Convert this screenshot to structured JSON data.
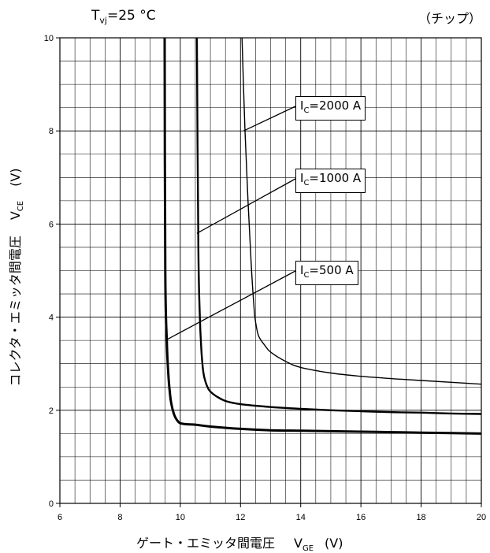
{
  "header": {
    "condition_main": "T",
    "condition_sub": "vj",
    "condition_value": "=25 °C",
    "scope": "（チップ）"
  },
  "axes": {
    "x_label_main": "ゲート・エミッタ間電圧",
    "x_label_sym": "V",
    "x_label_sub": "GE",
    "x_label_unit": "(V)",
    "y_label_main": "コレクタ・エミッタ間電圧",
    "y_label_sym": "V",
    "y_label_sub": "CE",
    "y_label_unit": "(V)"
  },
  "chart_data": {
    "type": "line",
    "xlim": [
      6,
      20
    ],
    "ylim": [
      0,
      10
    ],
    "x_ticks": [
      "6",
      "8",
      "10",
      "12",
      "14",
      "16",
      "18",
      "20"
    ],
    "y_ticks": [
      "0",
      "2",
      "4",
      "6",
      "8",
      "10"
    ],
    "grid": true,
    "minor_grid_x": 0.5,
    "minor_grid_y": 0.5,
    "series": [
      {
        "label_sym": "I",
        "label_sub": "C",
        "label_val": "=500 A",
        "pointer": [
          9.5,
          3.5
        ],
        "x": [
          9.48,
          9.5,
          9.55,
          9.6,
          9.65,
          9.7,
          9.8,
          9.9,
          10.0,
          10.2,
          10.5,
          11.0,
          12.0,
          13.0,
          14.0,
          15.0,
          16.0,
          17.0,
          18.0,
          19.0,
          20.0
        ],
        "y": [
          10.0,
          5.0,
          3.5,
          2.8,
          2.4,
          2.15,
          1.9,
          1.78,
          1.72,
          1.7,
          1.69,
          1.65,
          1.6,
          1.57,
          1.56,
          1.55,
          1.54,
          1.53,
          1.52,
          1.51,
          1.5
        ]
      },
      {
        "label_sym": "I",
        "label_sub": "C",
        "label_val": "=1000 A",
        "pointer": [
          10.55,
          5.8
        ],
        "x": [
          10.55,
          10.6,
          10.65,
          10.7,
          10.75,
          10.8,
          10.9,
          11.0,
          11.2,
          11.5,
          12.0,
          13.0,
          14.0,
          15.0,
          16.0,
          17.0,
          18.0,
          19.0,
          20.0
        ],
        "y": [
          10.0,
          5.5,
          4.0,
          3.3,
          2.9,
          2.7,
          2.5,
          2.4,
          2.3,
          2.2,
          2.13,
          2.07,
          2.03,
          2.0,
          1.98,
          1.96,
          1.95,
          1.93,
          1.92
        ]
      },
      {
        "label_sym": "I",
        "label_sub": "C",
        "label_val": "=2000 A",
        "pointer": [
          12.1,
          8.0
        ],
        "x": [
          12.05,
          12.15,
          12.25,
          12.35,
          12.45,
          12.5,
          12.6,
          12.8,
          13.0,
          13.5,
          14.0,
          15.0,
          16.0,
          17.0,
          18.0,
          19.0,
          20.0
        ],
        "y": [
          10.0,
          8.0,
          6.5,
          5.2,
          4.2,
          3.9,
          3.6,
          3.4,
          3.25,
          3.05,
          2.92,
          2.8,
          2.73,
          2.68,
          2.64,
          2.6,
          2.56
        ]
      }
    ]
  }
}
